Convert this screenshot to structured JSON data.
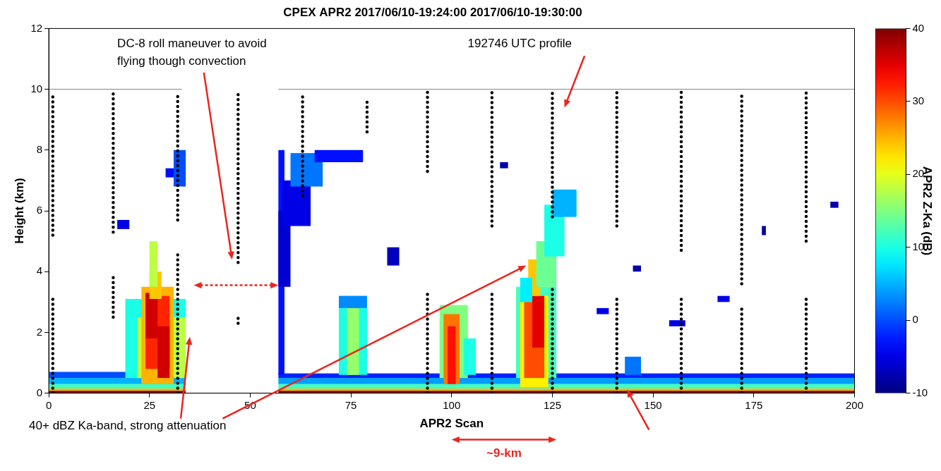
{
  "chart_data": {
    "type": "heatmap",
    "title": "CPEX APR2 2017/06/10-19:24:00 2017/06/10-19:30:00",
    "x_label": "APR2 Scan",
    "y_label": "Height (km)",
    "xlim": [
      0,
      200
    ],
    "xticks": [
      0,
      25,
      50,
      75,
      100,
      125,
      150,
      175,
      200
    ],
    "ylim": [
      0,
      12
    ],
    "yticks": [
      0,
      2,
      4,
      6,
      8,
      10,
      12
    ],
    "grid": false,
    "colorbar": {
      "label": "APR2 Z-Ka (dB)",
      "range": [
        -10,
        40
      ],
      "ticks": [
        -10,
        0,
        10,
        20,
        30,
        40
      ]
    },
    "cells": [
      [
        0,
        34,
        0,
        0.08,
        40
      ],
      [
        0,
        34,
        0.08,
        0.15,
        25
      ],
      [
        0,
        34,
        0.15,
        0.3,
        12
      ],
      [
        0,
        34,
        0.3,
        0.5,
        5
      ],
      [
        0,
        20,
        0.5,
        0.7,
        0
      ],
      [
        57,
        200,
        0,
        0.08,
        40
      ],
      [
        57,
        200,
        0.08,
        0.15,
        25
      ],
      [
        57,
        200,
        0.15,
        0.3,
        12
      ],
      [
        57,
        200,
        0.3,
        0.5,
        4
      ],
      [
        57,
        200,
        0.5,
        0.65,
        -2
      ],
      [
        19,
        34,
        0.5,
        3.1,
        10
      ],
      [
        22,
        34,
        0.5,
        2.5,
        18
      ],
      [
        23,
        31,
        0.3,
        3.5,
        25
      ],
      [
        24,
        30,
        0.8,
        3.2,
        32
      ],
      [
        24,
        27,
        1.8,
        3.3,
        36
      ],
      [
        27,
        30,
        0.5,
        2.2,
        36
      ],
      [
        25,
        28,
        3.1,
        4,
        24
      ],
      [
        25,
        27,
        3.5,
        5,
        18
      ],
      [
        31,
        34,
        6.8,
        8,
        0
      ],
      [
        29,
        31,
        7.1,
        7.4,
        -3
      ],
      [
        17,
        20,
        5.4,
        5.7,
        -5
      ],
      [
        57,
        58.5,
        0.6,
        8,
        -3
      ],
      [
        57,
        60,
        3.5,
        6,
        -6
      ],
      [
        58,
        65,
        5.5,
        7,
        -5
      ],
      [
        60,
        68,
        6.8,
        7.9,
        2
      ],
      [
        66,
        78,
        7.6,
        8,
        -3
      ],
      [
        72,
        79,
        0.6,
        3.2,
        10
      ],
      [
        74,
        77,
        0.6,
        3,
        16
      ],
      [
        72,
        79,
        2.8,
        3.2,
        3
      ],
      [
        97,
        104,
        0.5,
        2.9,
        15
      ],
      [
        98,
        102,
        0.3,
        2.6,
        28
      ],
      [
        99,
        101,
        0.3,
        2.2,
        33
      ],
      [
        103,
        106,
        0.6,
        1.8,
        10
      ],
      [
        116,
        126,
        0.5,
        3.5,
        12
      ],
      [
        117,
        124,
        0.2,
        3.2,
        22
      ],
      [
        118,
        123,
        0.5,
        3,
        30
      ],
      [
        120,
        123,
        1.5,
        3.2,
        35
      ],
      [
        119,
        122,
        3.2,
        4.4,
        24
      ],
      [
        117,
        120,
        3,
        3.8,
        8
      ],
      [
        121,
        126,
        3.5,
        5,
        14
      ],
      [
        123,
        128,
        4.5,
        6.2,
        10
      ],
      [
        125,
        131,
        5.8,
        6.7,
        5
      ],
      [
        143,
        147,
        0.6,
        1.2,
        2
      ],
      [
        136,
        139,
        2.6,
        2.8,
        -5
      ],
      [
        154,
        158,
        2.2,
        2.4,
        -5
      ],
      [
        166,
        169,
        3,
        3.2,
        -5
      ],
      [
        84,
        87,
        4.2,
        4.8,
        -7
      ],
      [
        112,
        114,
        7.4,
        7.6,
        -8
      ],
      [
        145,
        147,
        4,
        4.2,
        -8
      ],
      [
        194,
        196,
        6.1,
        6.3,
        -8
      ],
      [
        177,
        178,
        5.2,
        5.5,
        -8
      ]
    ],
    "profiles": {
      "color": "#000000",
      "lines": [
        {
          "x": 1,
          "segments": [
            [
              0,
              3.1
            ],
            [
              5.2,
              9.9
            ]
          ]
        },
        {
          "x": 16,
          "segments": [
            [
              2.5,
              3.8
            ],
            [
              5.3,
              9.9
            ]
          ]
        },
        {
          "x": 32,
          "segments": [
            [
              0,
              4.7
            ],
            [
              5.7,
              9.9
            ]
          ]
        },
        {
          "x": 47,
          "segments": [
            [
              2.3,
              2.5
            ],
            [
              4.3,
              9.9
            ]
          ]
        },
        {
          "x": 63,
          "segments": [
            [
              6.5,
              9.9
            ]
          ]
        },
        {
          "x": 79,
          "segments": [
            [
              8.6,
              9.6
            ]
          ]
        },
        {
          "x": 94,
          "segments": [
            [
              0,
              3.3
            ],
            [
              7.3,
              9.9
            ]
          ]
        },
        {
          "x": 110,
          "segments": [
            [
              0,
              3.3
            ],
            [
              5.5,
              9.9
            ]
          ]
        },
        {
          "x": 125,
          "segments": [
            [
              0,
              3.5
            ],
            [
              5.8,
              9.9
            ]
          ]
        },
        {
          "x": 141,
          "segments": [
            [
              0,
              3.2
            ],
            [
              5.5,
              9.9
            ]
          ]
        },
        {
          "x": 157,
          "segments": [
            [
              0,
              3.1
            ],
            [
              4.7,
              9.9
            ]
          ]
        },
        {
          "x": 172,
          "segments": [
            [
              0,
              2.8
            ],
            [
              3.6,
              9.9
            ]
          ]
        },
        {
          "x": 188,
          "segments": [
            [
              0,
              3.1
            ],
            [
              5,
              9.9
            ]
          ]
        }
      ]
    },
    "flight_lines": {
      "color": "#808080",
      "segments": [
        [
          0,
          33,
          10
        ],
        [
          57,
          200,
          10
        ]
      ]
    },
    "annotations": [
      {
        "text": [
          "DC-8 roll maneuver to avoid",
          "flying though convection"
        ]
      },
      {
        "text": "192746 UTC profile"
      },
      {
        "text": "40+ dBZ Ka-band, strong attenuation"
      },
      {
        "text": "~9-km"
      }
    ]
  }
}
